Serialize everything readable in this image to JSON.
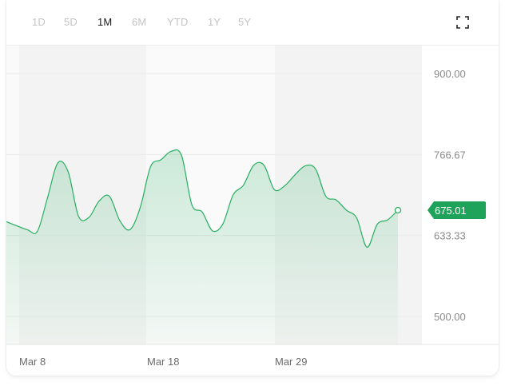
{
  "range_tabs": [
    {
      "label": "1D",
      "active": false
    },
    {
      "label": "5D",
      "active": false
    },
    {
      "label": "1M",
      "active": true
    },
    {
      "label": "6M",
      "active": false
    },
    {
      "label": "YTD",
      "active": false
    },
    {
      "label": "1Y",
      "active": false
    },
    {
      "label": "5Y",
      "active": false
    }
  ],
  "expand_icon": "expand-icon",
  "colors": {
    "line": "#27ae60",
    "badge": "#1fa35a",
    "band": "#f3f3f3"
  },
  "chart_data": {
    "type": "area",
    "y_ticks": [
      "900.00",
      "766.67",
      "633.33",
      "500.00"
    ],
    "y_tick_values": [
      900,
      766.67,
      633.33,
      500
    ],
    "x_ticks": [
      "Mar 8",
      "Mar 18",
      "Mar 29"
    ],
    "current_value": "675.01",
    "ylim": [
      466.67,
      950
    ],
    "grid": true,
    "series": [
      {
        "values": [
          [
            0,
            656
          ],
          [
            2,
            643
          ],
          [
            3,
            640
          ],
          [
            4,
            696
          ],
          [
            5,
            753
          ],
          [
            6,
            738
          ],
          [
            7,
            665
          ],
          [
            8,
            663
          ],
          [
            9,
            690
          ],
          [
            10,
            698
          ],
          [
            11,
            658
          ],
          [
            12,
            643
          ],
          [
            13,
            680
          ],
          [
            14,
            747
          ],
          [
            15,
            758
          ],
          [
            16,
            772
          ],
          [
            17,
            765
          ],
          [
            18,
            684
          ],
          [
            19,
            672
          ],
          [
            20,
            641
          ],
          [
            21,
            652
          ],
          [
            22,
            700
          ],
          [
            23,
            716
          ],
          [
            24,
            749
          ],
          [
            25,
            749
          ],
          [
            26,
            709
          ],
          [
            27,
            715
          ],
          [
            28,
            733
          ],
          [
            29,
            748
          ],
          [
            30,
            743
          ],
          [
            31,
            698
          ],
          [
            32,
            692
          ],
          [
            33,
            675
          ],
          [
            34,
            662
          ],
          [
            35,
            614
          ],
          [
            36,
            652
          ],
          [
            37,
            659
          ],
          [
            38,
            675
          ]
        ]
      }
    ]
  }
}
